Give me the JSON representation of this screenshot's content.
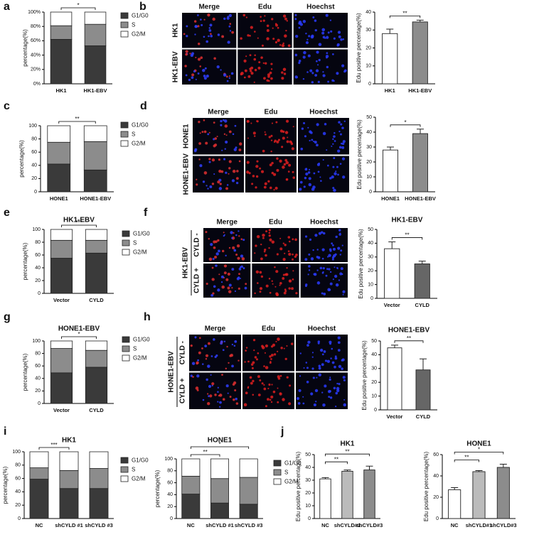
{
  "chart_data": [
    {
      "type": "stacked_bar",
      "panel": "a",
      "categories": [
        "HK1",
        "HK1-EBV"
      ],
      "series": [
        {
          "name": "G1/G0",
          "color": "#3a3a3a",
          "values": [
            62,
            53
          ]
        },
        {
          "name": "S",
          "color": "#8c8c8c",
          "values": [
            19,
            30
          ]
        },
        {
          "name": "G2/M",
          "color": "#ffffff",
          "values": [
            19,
            17
          ]
        }
      ],
      "ylim": [
        0,
        100
      ],
      "yticks": [
        {
          "value": 0,
          "label": "0%"
        },
        {
          "value": 20,
          "label": "20%"
        },
        {
          "value": 40,
          "label": "40%"
        },
        {
          "value": 60,
          "label": "60%"
        },
        {
          "value": 80,
          "label": "80%"
        },
        {
          "value": 100,
          "label": "100%"
        }
      ],
      "ylabel": "percentage(%)",
      "annotations": [
        "*"
      ]
    },
    {
      "type": "bar",
      "panel": "b",
      "image_columns": [
        "Merge",
        "Edu",
        "Hoechst"
      ],
      "image_rows": [
        "HK1",
        "HK1-EBV"
      ],
      "categories": [
        "HK1",
        "HK1-EBV"
      ],
      "values": [
        28,
        34.5
      ],
      "errors": [
        2.5,
        1
      ],
      "colors": [
        "#ffffff",
        "#8c8c8c"
      ],
      "ylim": [
        0,
        40
      ],
      "yticks": [
        0,
        10,
        20,
        30,
        40
      ],
      "ylabel": "Edu positive percentage(%)",
      "annotations": [
        "**"
      ]
    },
    {
      "type": "stacked_bar",
      "panel": "c",
      "categories": [
        "HONE1",
        "HONE1-EBV"
      ],
      "series": [
        {
          "name": "G1/G0",
          "color": "#3a3a3a",
          "values": [
            42,
            33
          ]
        },
        {
          "name": "S",
          "color": "#8c8c8c",
          "values": [
            33,
            43
          ]
        },
        {
          "name": "G2/M",
          "color": "#ffffff",
          "values": [
            25,
            24
          ]
        }
      ],
      "ylim": [
        0,
        100
      ],
      "yticks": [
        0,
        20,
        40,
        60,
        80,
        100
      ],
      "ylabel": "percentage(%)",
      "annotations": [
        "**"
      ]
    },
    {
      "type": "bar",
      "panel": "d",
      "image_columns": [
        "Merge",
        "Edu",
        "Hoechst"
      ],
      "image_rows": [
        "HONE1",
        "HONE1-EBV"
      ],
      "categories": [
        "HONE1",
        "HONE1-EBV"
      ],
      "values": [
        28,
        39
      ],
      "errors": [
        2,
        3
      ],
      "colors": [
        "#ffffff",
        "#8c8c8c"
      ],
      "ylim": [
        0,
        50
      ],
      "yticks": [
        0,
        10,
        20,
        30,
        40,
        50
      ],
      "ylabel": "Edu positive percentage(%)",
      "annotations": [
        "*"
      ]
    },
    {
      "type": "stacked_bar",
      "panel": "e",
      "title": "HK1-EBV",
      "categories": [
        "Vector",
        "CYLD"
      ],
      "series": [
        {
          "name": "G1/G0",
          "color": "#3a3a3a",
          "values": [
            55,
            63
          ]
        },
        {
          "name": "S",
          "color": "#8c8c8c",
          "values": [
            28,
            20
          ]
        },
        {
          "name": "G2/M",
          "color": "#ffffff",
          "values": [
            17,
            17
          ]
        }
      ],
      "ylim": [
        0,
        100
      ],
      "yticks": [
        0,
        20,
        40,
        60,
        80,
        100
      ],
      "ylabel": "percentage(%)",
      "annotations": [
        "***"
      ]
    },
    {
      "type": "bar",
      "panel": "f",
      "title": "HK1-EBV",
      "image_columns": [
        "Merge",
        "Edu",
        "Hoechst"
      ],
      "image_rows": [
        "CYLD -",
        "CYLD +"
      ],
      "image_group": "HK1-EBV",
      "categories": [
        "Vector",
        "CYLD"
      ],
      "values": [
        36,
        25
      ],
      "errors": [
        5,
        2
      ],
      "colors": [
        "#ffffff",
        "#666666"
      ],
      "ylim": [
        0,
        50
      ],
      "yticks": [
        0,
        10,
        20,
        30,
        40,
        50
      ],
      "ylabel": "Edu positive percentage(%)",
      "annotations": [
        "**"
      ]
    },
    {
      "type": "stacked_bar",
      "panel": "g",
      "title": "HONE1-EBV",
      "categories": [
        "Vector",
        "CYLD"
      ],
      "series": [
        {
          "name": "G1/G0",
          "color": "#3a3a3a",
          "values": [
            49,
            58
          ]
        },
        {
          "name": "S",
          "color": "#8c8c8c",
          "values": [
            39,
            27
          ]
        },
        {
          "name": "G2/M",
          "color": "#ffffff",
          "values": [
            12,
            15
          ]
        }
      ],
      "ylim": [
        0,
        100
      ],
      "yticks": [
        0,
        20,
        40,
        60,
        80,
        100
      ],
      "ylabel": "percentage(%)",
      "annotations": [
        "*"
      ]
    },
    {
      "type": "bar",
      "panel": "h",
      "title": "HONE1-EBV",
      "image_columns": [
        "Merge",
        "Edu",
        "Hoechst"
      ],
      "image_rows": [
        "CYLD -",
        "CYLD +"
      ],
      "image_group": "HONE1-EBV",
      "categories": [
        "Vector",
        "CYLD"
      ],
      "values": [
        45,
        29
      ],
      "errors": [
        2,
        8
      ],
      "colors": [
        "#ffffff",
        "#666666"
      ],
      "ylim": [
        0,
        50
      ],
      "yticks": [
        0,
        10,
        20,
        30,
        40,
        50
      ],
      "ylabel": "Edu positive percentage(%)",
      "annotations": [
        "**"
      ]
    },
    {
      "type": "stacked_bar",
      "panel": "i",
      "title": "HK1",
      "categories": [
        "NC",
        "shCYLD #1",
        "shCYLD #3"
      ],
      "series": [
        {
          "name": "G1/G0",
          "color": "#3a3a3a",
          "values": [
            59,
            45,
            45
          ]
        },
        {
          "name": "S",
          "color": "#8c8c8c",
          "values": [
            17,
            27,
            30
          ]
        },
        {
          "name": "G2/M",
          "color": "#ffffff",
          "values": [
            24,
            28,
            25
          ]
        }
      ],
      "ylim": [
        0,
        100
      ],
      "yticks": [
        0,
        20,
        40,
        60,
        80,
        100
      ],
      "ylabel": "percentage(%)",
      "annotations": [
        "***"
      ]
    },
    {
      "type": "stacked_bar",
      "title": "HONE1",
      "categories": [
        "NC",
        "shCYLD #1",
        "shCYLD #3"
      ],
      "series": [
        {
          "name": "G1/G0",
          "color": "#3a3a3a",
          "values": [
            41,
            26,
            24
          ]
        },
        {
          "name": "S",
          "color": "#8c8c8c",
          "values": [
            30,
            41,
            45
          ]
        },
        {
          "name": "G2/M",
          "color": "#ffffff",
          "values": [
            29,
            33,
            31
          ]
        }
      ],
      "ylim": [
        0,
        100
      ],
      "yticks": [
        0,
        20,
        40,
        60,
        80,
        100
      ],
      "ylabel": "percentage(%)",
      "annotations": [
        "**",
        "*"
      ]
    },
    {
      "type": "bar",
      "panel": "j",
      "title": "HK1",
      "categories": [
        "NC",
        "shCYLD#1",
        "shCYLD#3"
      ],
      "values": [
        31,
        37,
        38
      ],
      "errors": [
        1,
        1,
        3
      ],
      "colors": [
        "#ffffff",
        "#bbbbbb",
        "#8c8c8c"
      ],
      "ylim": [
        0,
        50
      ],
      "yticks": [
        0,
        10,
        20,
        30,
        40,
        50
      ],
      "ylabel": "Edu positive percentage(%)",
      "annotations": [
        "**",
        "**"
      ]
    },
    {
      "type": "bar",
      "title": "HONE1",
      "categories": [
        "NC",
        "shCYLD#1",
        "shCYLD#3"
      ],
      "values": [
        27,
        44,
        48
      ],
      "errors": [
        2,
        1,
        3
      ],
      "colors": [
        "#ffffff",
        "#bbbbbb",
        "#8c8c8c"
      ],
      "ylim": [
        0,
        60
      ],
      "yticks": [
        0,
        20,
        40,
        60
      ],
      "ylabel": "Edu positive percentage(%)",
      "annotations": [
        "**",
        "*"
      ]
    }
  ]
}
